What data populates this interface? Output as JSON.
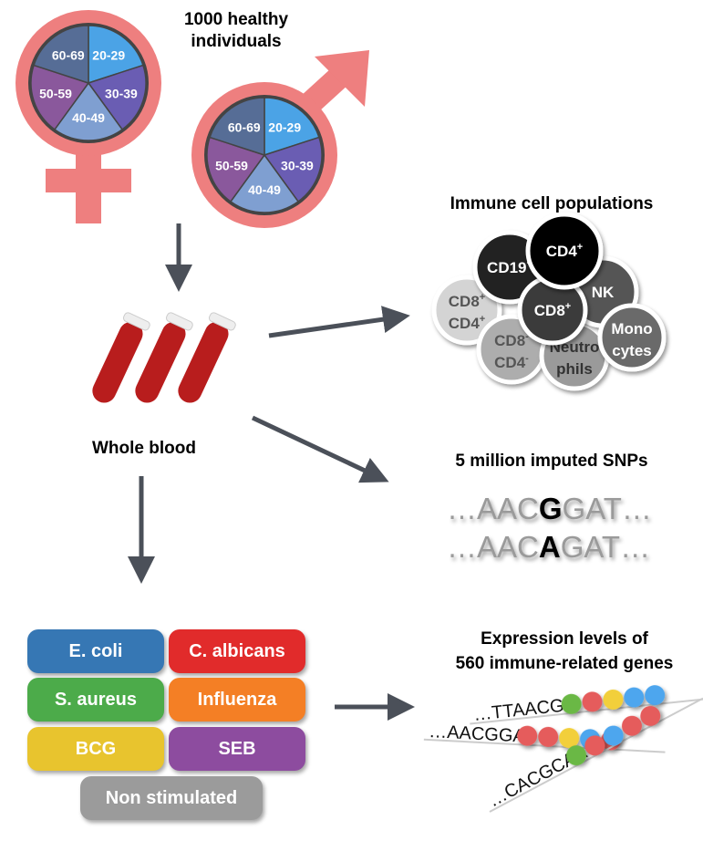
{
  "cohort": {
    "title_line1": "1000 healthy",
    "title_line2": "individuals",
    "age_groups": [
      "20-29",
      "30-39",
      "40-49",
      "50-59",
      "60-69"
    ],
    "age_colors": [
      "#4ba3e6",
      "#6a5db3",
      "#7f9fd1",
      "#8a589c",
      "#566d96"
    ],
    "symbol_color": "#ee7f7f"
  },
  "blood": {
    "label": "Whole blood",
    "tube_color": "#b81d1d"
  },
  "immune": {
    "title": "Immune cell populations",
    "cells": [
      {
        "label1": "CD8",
        "sup1": "+",
        "label2": "CD4",
        "sup2": "+",
        "fill": "#d4d4d4",
        "text": "#555555"
      },
      {
        "label1": "CD8",
        "sup1": "-",
        "label2": "CD4",
        "sup2": "-",
        "fill": "#adadad",
        "text": "#555555"
      },
      {
        "label1": "Neutro",
        "sup1": "",
        "label2": "phils",
        "sup2": "",
        "fill": "#9a9a9a",
        "text": "#333333"
      },
      {
        "label1": "NK",
        "sup1": "",
        "label2": "",
        "sup2": "",
        "fill": "#555555",
        "text": "#ffffff"
      },
      {
        "label1": "Mono",
        "sup1": "",
        "label2": "cytes",
        "sup2": "",
        "fill": "#6a6a6a",
        "text": "#ffffff"
      },
      {
        "label1": "CD19",
        "sup1": "+",
        "label2": "",
        "sup2": "",
        "fill": "#222222",
        "text": "#ffffff"
      },
      {
        "label1": "CD8",
        "sup1": "+",
        "label2": "",
        "sup2": "",
        "fill": "#3a3a3a",
        "text": "#ffffff"
      },
      {
        "label1": "CD4",
        "sup1": "+",
        "label2": "",
        "sup2": "",
        "fill": "#000000",
        "text": "#ffffff"
      }
    ]
  },
  "snps": {
    "title": "5 million imputed SNPs",
    "line1": {
      "pre": "…AAC",
      "variant": "G",
      "post": "GAT…"
    },
    "line2": {
      "pre": "…AAC",
      "variant": "A",
      "post": "GAT…"
    }
  },
  "stimuli": {
    "items": [
      {
        "label": "E. coli",
        "color": "#3677b4"
      },
      {
        "label": "C. albicans",
        "color": "#e12b2b"
      },
      {
        "label": "S. aureus",
        "color": "#4cab4a"
      },
      {
        "label": "Influenza",
        "color": "#f47f25"
      },
      {
        "label": "BCG",
        "color": "#e8c42e"
      },
      {
        "label": "SEB",
        "color": "#8d4c9f"
      },
      {
        "label": "Non stimulated",
        "color": "#9b9b9b"
      }
    ]
  },
  "expression": {
    "title_line1": "Expression levels of",
    "title_line2": "560 immune-related genes",
    "strands": [
      {
        "seq": "…TTAACGG",
        "beads": [
          "#6ab845",
          "#e55c5c",
          "#f2cf3a",
          "#4ea6ee",
          "#4ea6ee"
        ]
      },
      {
        "seq": "…AACGGAT",
        "beads": [
          "#e55c5c",
          "#e55c5c",
          "#f2cf3a",
          "#4ea6ee",
          "#e55c5c"
        ]
      },
      {
        "seq": "…CACGCAA",
        "beads": [
          "#6ab845",
          "#e55c5c",
          "#4ea6ee",
          "#e55c5c",
          "#e55c5c"
        ]
      }
    ]
  },
  "arrow_color": "#4b5059"
}
